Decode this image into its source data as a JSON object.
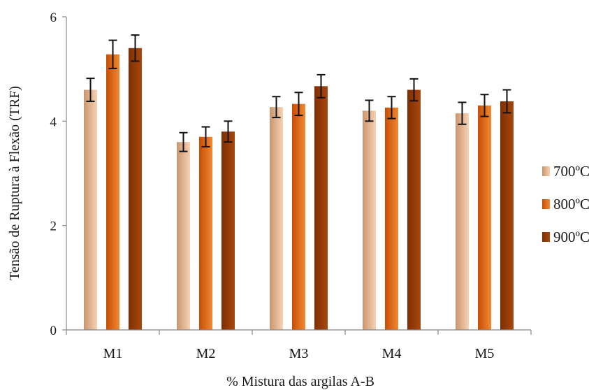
{
  "chart_data": {
    "type": "bar",
    "categories": [
      "M1",
      "M2",
      "M3",
      "M4",
      "M5"
    ],
    "series": [
      {
        "name": "700ºC",
        "values": [
          4.6,
          3.6,
          4.27,
          4.2,
          4.15
        ],
        "errors": [
          0.22,
          0.18,
          0.2,
          0.2,
          0.21
        ],
        "colors": [
          "#c9956f",
          "#f6d2b3"
        ]
      },
      {
        "name": "800ºC",
        "values": [
          5.28,
          3.7,
          4.33,
          4.26,
          4.3
        ],
        "errors": [
          0.27,
          0.19,
          0.22,
          0.21,
          0.21
        ],
        "colors": [
          "#c84d05",
          "#f08a33"
        ]
      },
      {
        "name": "900ºC",
        "values": [
          5.4,
          3.8,
          4.67,
          4.6,
          4.38
        ],
        "errors": [
          0.25,
          0.2,
          0.22,
          0.21,
          0.22
        ],
        "colors": [
          "#7e2f03",
          "#a8470e"
        ]
      }
    ],
    "xlabel": "% Mistura das argilas A-B",
    "ylabel": "Tensão de Ruptura à Flexão (TRF)",
    "ylim": [
      0,
      6
    ],
    "yticks": [
      0,
      2,
      4,
      6
    ],
    "grid": false,
    "legend": "right"
  }
}
